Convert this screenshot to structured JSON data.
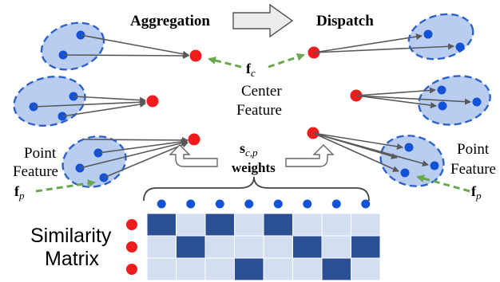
{
  "headings": {
    "aggregation": "Aggregation",
    "dispatch": "Dispatch"
  },
  "labels": {
    "center_feature_line1": "Center",
    "center_feature_line2": "Feature",
    "fc_main": "f",
    "fc_sub": "c",
    "point_feature_line1": "Point",
    "point_feature_line2": "Feature",
    "fp_main": "f",
    "fp_sub": "p",
    "scp_main": "s",
    "scp_sub": "c,p",
    "weights": "weights",
    "similarity_line1": "Similarity",
    "similarity_line2": "Matrix"
  },
  "similarity_matrix": {
    "rows": 3,
    "cols": 8,
    "filled": [
      [
        1,
        0,
        1,
        0,
        1,
        0,
        0,
        0
      ],
      [
        0,
        1,
        0,
        0,
        0,
        1,
        0,
        1
      ],
      [
        0,
        0,
        0,
        1,
        0,
        0,
        1,
        0
      ]
    ],
    "filled_color": "#2a4f93",
    "empty_color": "#d3def0"
  },
  "colors": {
    "point": "#1352d6",
    "center": "#ee1c1c",
    "cluster_fill": "#b9cdf0",
    "cluster_stroke": "#2e62c9",
    "arrow": "#595959",
    "feature_arrow": "#6aa84f"
  }
}
